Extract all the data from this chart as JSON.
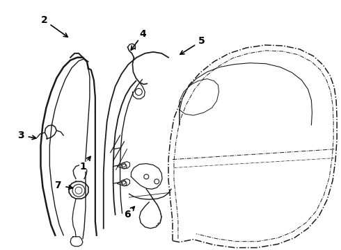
{
  "background_color": "#ffffff",
  "line_color": "#1a1a1a",
  "label_color": "#000000",
  "arrow_color": "#000000",
  "figsize": [
    4.9,
    3.6
  ],
  "dpi": 100,
  "callouts": [
    [
      "2",
      62,
      28,
      100,
      55
    ],
    [
      "4",
      205,
      48,
      185,
      75
    ],
    [
      "5",
      290,
      58,
      255,
      80
    ],
    [
      "3",
      28,
      195,
      55,
      200
    ],
    [
      "1",
      118,
      240,
      132,
      222
    ],
    [
      "7",
      82,
      268,
      108,
      272
    ],
    [
      "6",
      182,
      310,
      196,
      295
    ]
  ]
}
